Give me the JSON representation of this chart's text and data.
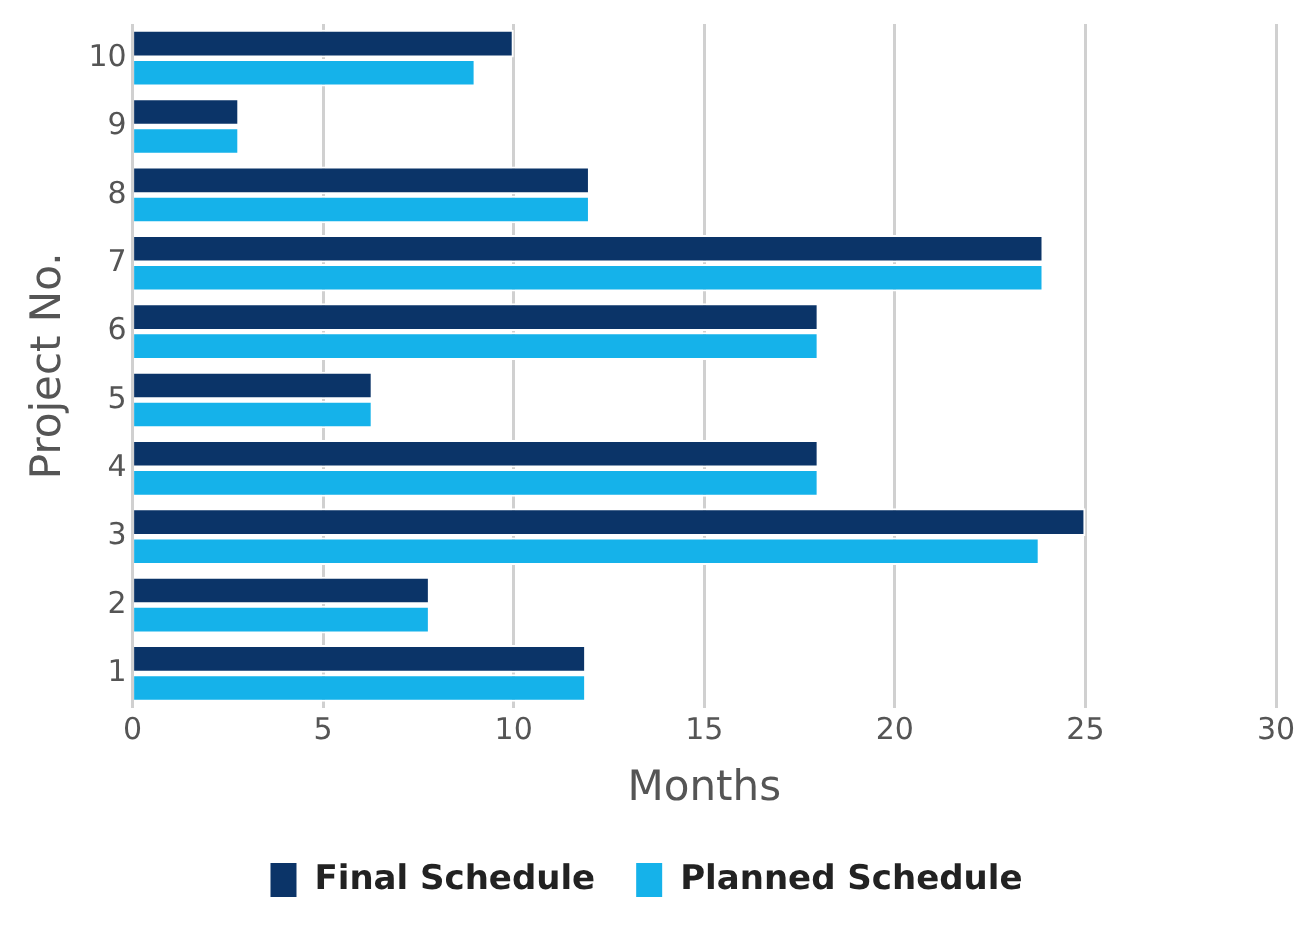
{
  "chart_data": {
    "type": "bar",
    "orientation": "horizontal",
    "xlabel": "Months",
    "ylabel": "Project No.",
    "categories": [
      "10",
      "9",
      "8",
      "7",
      "6",
      "5",
      "4",
      "3",
      "2",
      "1"
    ],
    "series": [
      {
        "name": "Final Schedule",
        "color": "#0b3468",
        "values": [
          10,
          2.8,
          12,
          23.9,
          18,
          6.3,
          18,
          25,
          7.8,
          11.9
        ]
      },
      {
        "name": "Planned Schedule",
        "color": "#15b2ea",
        "values": [
          9,
          2.8,
          12,
          23.9,
          18,
          6.3,
          18,
          23.8,
          7.8,
          11.9
        ]
      }
    ],
    "xlim": [
      0,
      30
    ],
    "xticks": [
      0,
      5,
      10,
      15,
      20,
      25,
      30
    ],
    "grid": "x",
    "legend": "bottom"
  }
}
